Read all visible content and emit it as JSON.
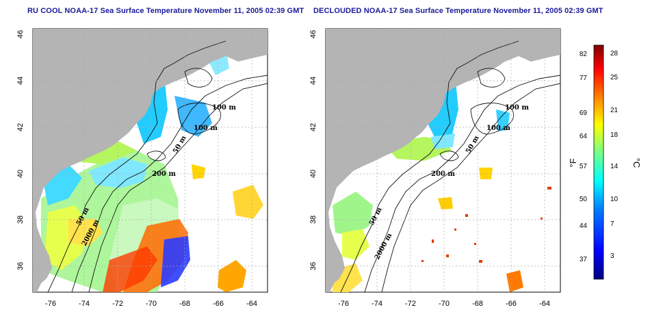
{
  "left_panel": {
    "title": "RU COOL NOAA-17 Sea Surface Temperature November 11, 2005 02:39 GMT"
  },
  "right_panel": {
    "title": "DECLOUDED NOAA-17 Sea Surface Temperature November 11, 2005 02:39 GMT"
  },
  "axes": {
    "lon_ticks": [
      "-76",
      "-74",
      "-72",
      "-70",
      "-68",
      "-66",
      "-64"
    ],
    "lat_ticks": [
      "36",
      "38",
      "40",
      "42",
      "44",
      "46"
    ]
  },
  "contour_labels": [
    "100 m",
    "100 m",
    "50 m",
    "200 m",
    "50 m",
    "2000 m"
  ],
  "colorbar": {
    "unit_f": "°F",
    "unit_c": "°C",
    "fahrenheit_ticks": [
      "82",
      "77",
      "69",
      "64",
      "57",
      "50",
      "44",
      "37"
    ],
    "celsius_ticks": [
      "28",
      "25",
      "21",
      "18",
      "14",
      "10",
      "7",
      "3"
    ]
  },
  "colors": {
    "land": "#b4b4b4",
    "ocean": "#ffffff",
    "title": "#1a1a9a",
    "colorbar_stops": [
      "#00007f",
      "#0000ff",
      "#007fff",
      "#00ffff",
      "#7fff7f",
      "#ffff00",
      "#ff7f00",
      "#ff0000",
      "#7f0000"
    ]
  }
}
